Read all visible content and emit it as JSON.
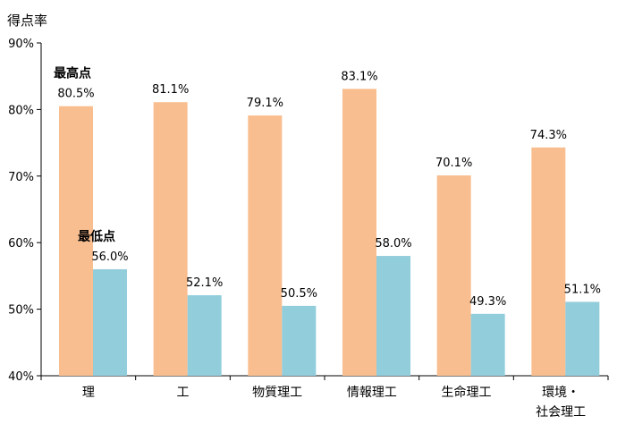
{
  "chart_data": {
    "type": "bar",
    "ylabel": "得点率",
    "ylim": [
      40,
      90
    ],
    "yticks": [
      "40%",
      "50%",
      "60%",
      "70%",
      "80%",
      "90%"
    ],
    "grid": false,
    "categories": [
      [
        "理"
      ],
      [
        "工"
      ],
      [
        "物質理工"
      ],
      [
        "情報理工"
      ],
      [
        "生命理工"
      ],
      [
        "環境・",
        "社会理工"
      ]
    ],
    "series": [
      {
        "name": "最高点",
        "color": "#f9be8f",
        "values": [
          80.5,
          81.1,
          79.1,
          83.1,
          70.1,
          74.3
        ],
        "labels": [
          "80.5%",
          "81.1%",
          "79.1%",
          "83.1%",
          "70.1%",
          "74.3%"
        ]
      },
      {
        "name": "最低点",
        "color": "#92cddc",
        "values": [
          56.0,
          52.1,
          50.5,
          58.0,
          49.3,
          51.1
        ],
        "labels": [
          "56.0%",
          "52.1%",
          "50.5%",
          "58.0%",
          "49.3%",
          "51.1%"
        ]
      }
    ]
  }
}
